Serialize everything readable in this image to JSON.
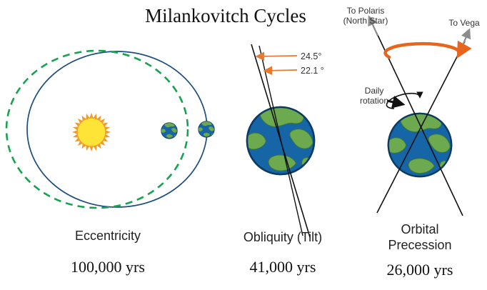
{
  "title": "Milankovitch Cycles",
  "panels": {
    "eccentricity": {
      "label": "Eccentricity",
      "period": "100,000 yrs"
    },
    "obliquity": {
      "label": "Obliquity (Tilt)",
      "period": "41,000 yrs",
      "angle_outer": "24.5°",
      "angle_inner": "22.1 °"
    },
    "precession": {
      "label_lines": [
        "Orbital",
        "Precession"
      ],
      "period": "26,000 yrs",
      "polaris_lines": [
        "To Polaris",
        "(North Star)"
      ],
      "vega_label": "To Vega",
      "daily_rotation_lines": [
        "Daily",
        "rotation"
      ]
    }
  },
  "colors": {
    "orbit_solid_blue": "#1d4e7e",
    "orbit_dashed_green": "#17a24f",
    "sun_disc": "#ffe438",
    "sun_rays": "#f09a28",
    "earth_ocean": "#1565a7",
    "earth_land": "#6da94e",
    "angle_arrow_orange": "#e87a30",
    "precession_arrow_orange": "#e8651d",
    "star_arrow_gray": "#8c8c8c",
    "axis_line": "#111111"
  }
}
